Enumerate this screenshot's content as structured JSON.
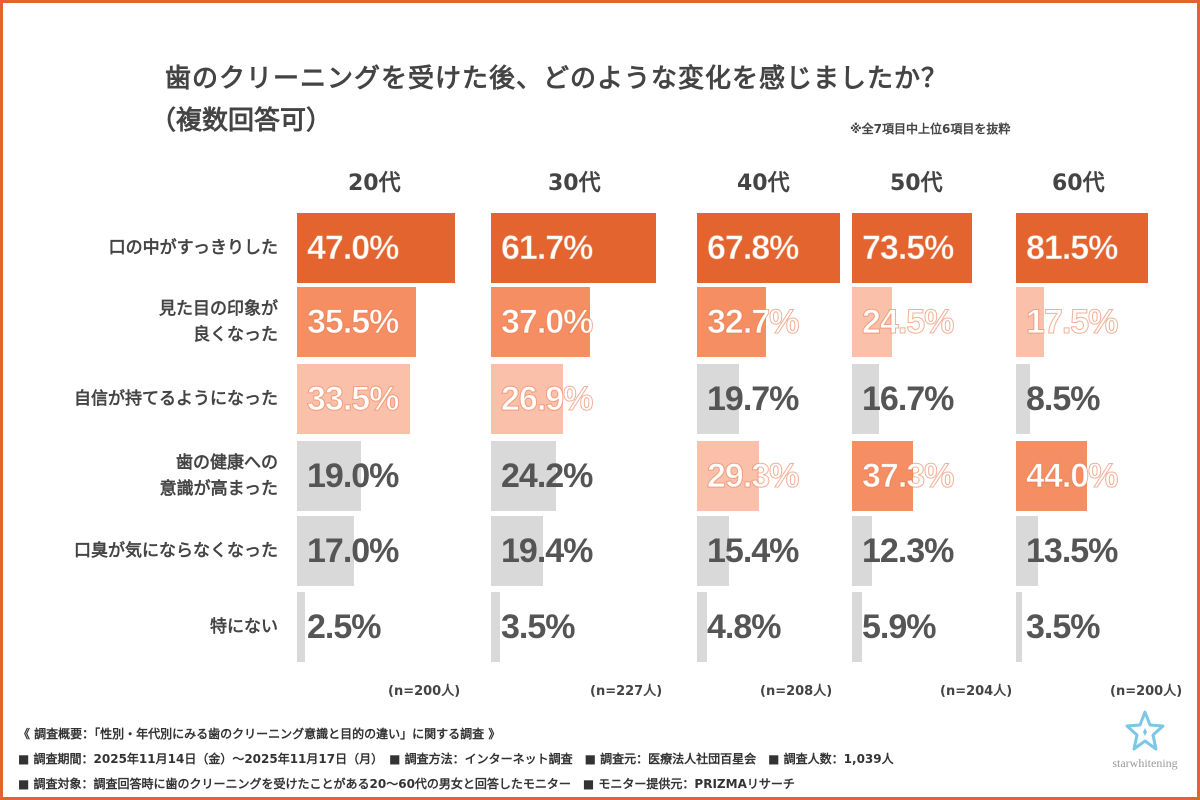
{
  "title": "歯のクリーニングを受けた後、どのような変化を感じましたか？",
  "subtitle": "（複数回答可）",
  "note": "※全7項目中上位6項目を抜粋",
  "colors": {
    "rank1": "#E4642F",
    "rank2": "#F68E64",
    "rank3": "#FBC0AA",
    "other": "#D9D9D9",
    "border": "#E4642F"
  },
  "chart_data": {
    "type": "bar",
    "orientation": "horizontal",
    "categories": [
      "口の中がすっきりした",
      "見た目の印象が\n良くなった",
      "自信が持てるようになった",
      "歯の健康への\n意識が高まった",
      "口臭が気にならなくなった",
      "特にない"
    ],
    "series": [
      {
        "name": "20代",
        "n": "(n=200人)",
        "values": [
          47.0,
          35.5,
          33.5,
          19.0,
          17.0,
          2.5
        ],
        "labels": [
          "47.0%",
          "35.5%",
          "33.5%",
          "19.0%",
          "17.0%",
          "2.5%"
        ]
      },
      {
        "name": "30代",
        "n": "(n=227人)",
        "values": [
          61.7,
          37.0,
          26.9,
          24.2,
          19.4,
          3.5
        ],
        "labels": [
          "61.7%",
          "37.0%",
          "26.9%",
          "24.2%",
          "19.4%",
          "3.5%"
        ]
      },
      {
        "name": "40代",
        "n": "(n=208人)",
        "values": [
          67.8,
          32.7,
          19.7,
          29.3,
          15.4,
          4.8
        ],
        "labels": [
          "67.8%",
          "32.7%",
          "19.7%",
          "29.3%",
          "15.4%",
          "4.8%"
        ]
      },
      {
        "name": "50代",
        "n": "(n=204人)",
        "values": [
          73.5,
          24.5,
          16.7,
          37.3,
          12.3,
          5.9
        ],
        "labels": [
          "73.5%",
          "24.5%",
          "16.7%",
          "37.3%",
          "12.3%",
          "5.9%"
        ]
      },
      {
        "name": "60代",
        "n": "(n=200人)",
        "values": [
          81.5,
          17.5,
          8.5,
          44.0,
          13.5,
          3.5
        ],
        "labels": [
          "81.5%",
          "17.5%",
          "8.5%",
          "44.0%",
          "13.5%",
          "3.5%"
        ]
      }
    ]
  },
  "footer": {
    "line1": "《 調査概要：「性別・年代別にみる歯のクリーニング意識と目的の違い」に関する調査 》",
    "line2": "■ 調査期間：2025年11月14日（金）～2025年11月17日（月）　■ 調査方法：インターネット調査　■ 調査元：医療法人社団百星会　■ 調査人数：1,039人",
    "line3": "■ 調査対象：調査回答時に歯のクリーニングを受けたことがある20～60代の男女と回答したモニター　■ モニター提供元：PRIZMAリサーチ"
  },
  "logo": {
    "text": "starwhitening"
  }
}
